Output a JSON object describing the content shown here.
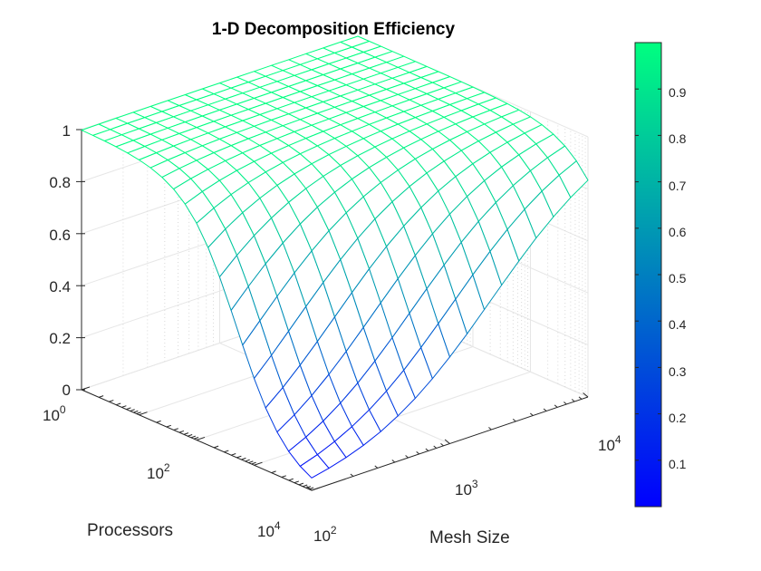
{
  "chart_data": {
    "type": "surface",
    "title": "1-D Decomposition Efficiency",
    "xlabel": "Mesh Size",
    "ylabel": "Processors",
    "zlabel": "",
    "x_scale": "log",
    "y_scale": "log",
    "xlim": [
      100,
      10000
    ],
    "ylim": [
      1,
      10000
    ],
    "zlim": [
      0,
      1
    ],
    "grid": true,
    "x_ticks": [
      {
        "base": "10",
        "exp": "2"
      },
      {
        "base": "10",
        "exp": "3"
      },
      {
        "base": "10",
        "exp": "4"
      }
    ],
    "y_ticks": [
      {
        "base": "10",
        "exp": "0"
      },
      {
        "base": "10",
        "exp": "2"
      },
      {
        "base": "10",
        "exp": "4"
      }
    ],
    "z_ticks": [
      "0",
      "0.2",
      "0.4",
      "0.6",
      "0.8",
      "1"
    ],
    "grid_x_samples": [
      100,
      133.35,
      177.83,
      237.14,
      316.23,
      421.7,
      562.34,
      749.89,
      1000,
      1333.52,
      1778.28,
      2371.37,
      3162.28,
      4216.97,
      5623.41,
      7498.94,
      10000
    ],
    "grid_y_samples": [
      1,
      1.58,
      2.51,
      3.98,
      6.31,
      10,
      15.85,
      25.12,
      39.81,
      63.1,
      100,
      158.49,
      251.19,
      398.11,
      630.96,
      1000,
      1584.89,
      2511.89,
      3981.07,
      6309.57,
      10000
    ],
    "surface_model": "efficiency = 1 / (1 + 0.2 * processors / mesh_size)",
    "sample_values": [
      {
        "mesh_size": 100,
        "processors": 1,
        "efficiency": 0.998
      },
      {
        "mesh_size": 100,
        "processors": 100,
        "efficiency": 0.83
      },
      {
        "mesh_size": 100,
        "processors": 10000,
        "efficiency": 0.05
      },
      {
        "mesh_size": 10000,
        "processors": 10000,
        "efficiency": 0.83
      },
      {
        "mesh_size": 10000,
        "processors": 1,
        "efficiency": 1.0
      }
    ],
    "colormap": "winter",
    "colorbar": {
      "ticks": [
        "0.1",
        "0.2",
        "0.3",
        "0.4",
        "0.5",
        "0.6",
        "0.7",
        "0.8",
        "0.9"
      ],
      "range": [
        0,
        1
      ],
      "color_low": "#0000ff",
      "color_high": "#00ff80"
    }
  }
}
